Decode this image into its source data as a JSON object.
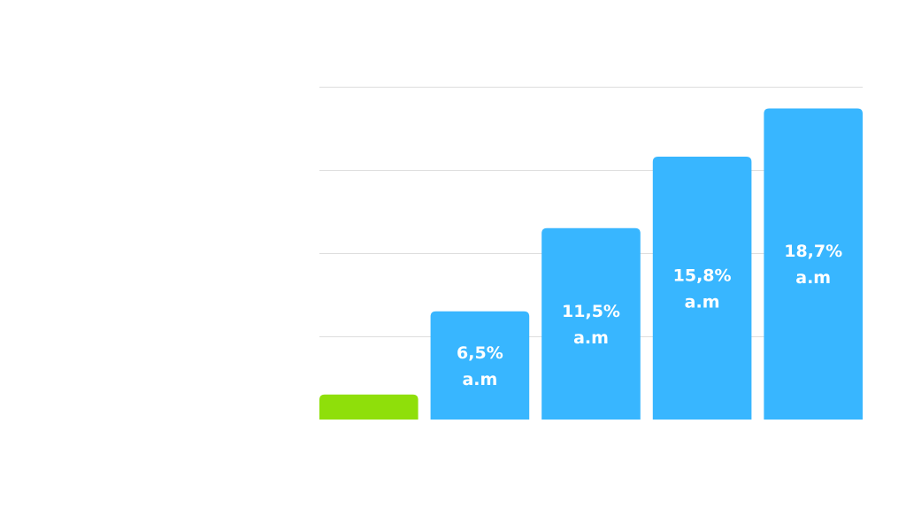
{
  "chart_data": {
    "type": "bar",
    "categories": [
      "",
      "",
      "",
      "",
      ""
    ],
    "values": [
      1.5,
      6.5,
      11.5,
      15.8,
      18.7
    ],
    "data_labels": [
      [
        "",
        ""
      ],
      [
        "6,5%",
        "a.m"
      ],
      [
        "11,5%",
        "a.m"
      ],
      [
        "15,8%",
        "a.m"
      ],
      [
        "18,7%",
        "a.m"
      ]
    ],
    "bar_colors": [
      "#8fdf0a",
      "#38b6ff",
      "#38b6ff",
      "#38b6ff",
      "#38b6ff"
    ],
    "label_color": "#ffffff",
    "gridline_color": "#dddddd",
    "grid": true,
    "ylim": [
      0,
      20
    ],
    "gridlines": [
      5,
      10,
      15,
      20
    ],
    "title": "",
    "xlabel": "",
    "ylabel": ""
  }
}
